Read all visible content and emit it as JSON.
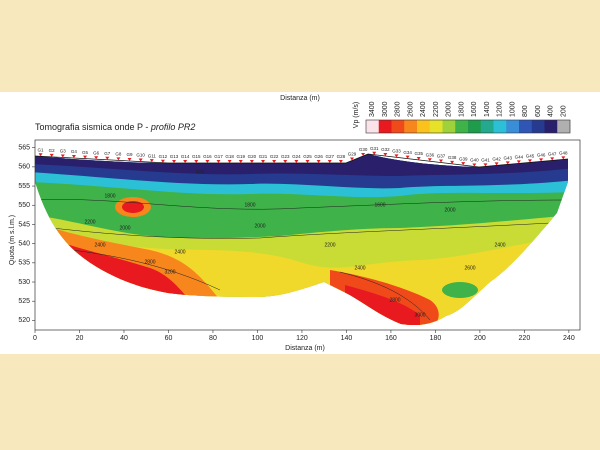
{
  "chart_data": {
    "type": "contour",
    "title": "Tomografia sismica onde P -",
    "title_italic": "profilo PR2",
    "xlabel": "Distanza (m)",
    "ylabel": "Quota (m s.l.m.)",
    "xlim": [
      0,
      245
    ],
    "ylim": [
      517.5,
      567
    ],
    "xticks": [
      0,
      20,
      40,
      60,
      80,
      100,
      120,
      140,
      160,
      180,
      200,
      220,
      240
    ],
    "yticks": [
      520,
      525,
      530,
      535,
      540,
      545,
      550,
      555,
      560,
      565
    ],
    "colorbar": {
      "label": "Vp (m/s)",
      "ticks": [
        3400,
        3000,
        2800,
        2600,
        2400,
        2200,
        2000,
        1800,
        1600,
        1400,
        1200,
        1000,
        800,
        600,
        400,
        200
      ],
      "colors": [
        "#fbe3ea",
        "#e8191f",
        "#f04a1b",
        "#f7861c",
        "#fbc21e",
        "#e6e22a",
        "#9fd13b",
        "#3fb249",
        "#1f9b4c",
        "#22a98e",
        "#2cc0d6",
        "#3a8ed8",
        "#2f56b5",
        "#263a8f",
        "#2a1f6b",
        "#b0b0b0"
      ]
    },
    "geophones": [
      "G1",
      "G2",
      "G3",
      "G4",
      "G5",
      "G6",
      "G7",
      "G8",
      "G9",
      "G10",
      "G11",
      "G12",
      "G13",
      "G14",
      "G15",
      "G16",
      "G17",
      "G18",
      "G19",
      "G20",
      "G21",
      "G22",
      "G23",
      "G24",
      "G25",
      "G26",
      "G27",
      "G28",
      "G29",
      "G30",
      "G31",
      "G32",
      "G33",
      "G34",
      "G35",
      "G36",
      "G37",
      "G38",
      "G39",
      "G40",
      "G41",
      "G42",
      "G43",
      "G44",
      "G45",
      "G46",
      "G47",
      "G48"
    ],
    "contour_labels": [
      "600",
      "1800",
      "1800",
      "1600",
      "2000",
      "2200",
      "2400",
      "2400",
      "2800",
      "3200",
      "2000",
      "2200",
      "2400",
      "2600",
      "2800",
      "3000",
      "2400",
      "2000"
    ]
  }
}
